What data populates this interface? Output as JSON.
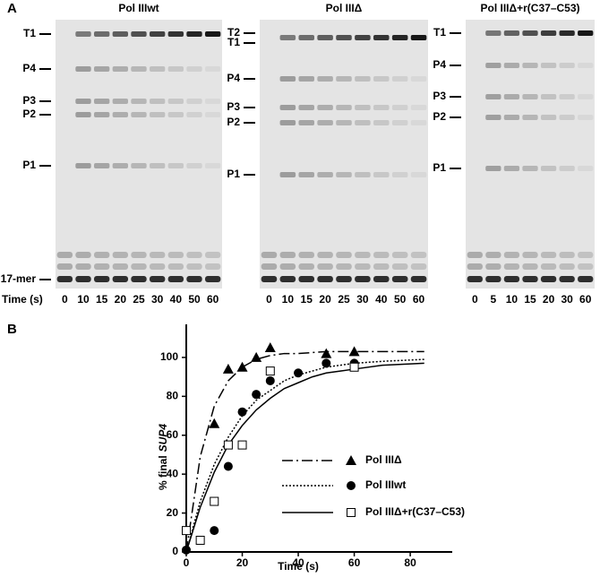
{
  "panel_labels": [
    "A",
    "B"
  ],
  "time_label": "Time (s)",
  "gels": [
    {
      "title": "Pol IIIwt",
      "bands": [
        "T1",
        "P4",
        "P3",
        "P2",
        "P1",
        "17-mer"
      ],
      "lanes": [
        "0",
        "10",
        "15",
        "20",
        "25",
        "30",
        "40",
        "50",
        "60"
      ]
    },
    {
      "title": "Pol IIIΔ",
      "bands": [
        "T2",
        "T1",
        "P4",
        "P3",
        "P2",
        "P1"
      ],
      "lanes": [
        "0",
        "10",
        "15",
        "20",
        "25",
        "30",
        "40",
        "50",
        "60"
      ]
    },
    {
      "title": "Pol IIIΔ+r(C37–C53)",
      "bands": [
        "T1",
        "P4",
        "P3",
        "P2",
        "P1"
      ],
      "lanes": [
        "0",
        "5",
        "10",
        "15",
        "20",
        "30",
        "60"
      ]
    }
  ],
  "chart_data": {
    "type": "scatter",
    "x_label": "Time (s)",
    "y_label": {
      "text": "% final",
      "italic": "SUP4"
    },
    "xlim": [
      0,
      95
    ],
    "ylim": [
      0,
      117
    ],
    "xticks": [
      0,
      20,
      40,
      60,
      80
    ],
    "yticks": [
      0,
      20,
      40,
      60,
      80,
      100
    ],
    "series": [
      {
        "name": "Pol IIIΔ",
        "marker": "triangle",
        "dash": "12,4,2,4",
        "color": "#000000",
        "x": [
          10,
          15,
          20,
          25,
          30,
          50,
          60
        ],
        "values": [
          66,
          94,
          95,
          100,
          105,
          102,
          103
        ],
        "fit_x": [
          0,
          5,
          10,
          15,
          20,
          25,
          30,
          35,
          40,
          50,
          60,
          70,
          85
        ],
        "fit_values": [
          0,
          49,
          75,
          88,
          95,
          99,
          101,
          102,
          102,
          103,
          103,
          103,
          103
        ]
      },
      {
        "name": "Pol IIIwt",
        "marker": "circle",
        "dash": "2,2",
        "color": "#000000",
        "x": [
          0,
          10,
          15,
          20,
          25,
          30,
          40,
          50,
          60
        ],
        "values": [
          1,
          11,
          44,
          72,
          81,
          88,
          92,
          97,
          97
        ],
        "fit_x": [
          0,
          5,
          10,
          15,
          20,
          25,
          30,
          35,
          40,
          45,
          50,
          55,
          60,
          70,
          85
        ],
        "fit_values": [
          0,
          26,
          45,
          59,
          70,
          78,
          83,
          88,
          91,
          93,
          95,
          96,
          97,
          98,
          99
        ]
      },
      {
        "name": "Pol IIIΔ+r(C37–C53)",
        "marker": "square",
        "dash": "",
        "color": "#000000",
        "x": [
          0,
          5,
          10,
          15,
          20,
          30,
          60
        ],
        "values": [
          11,
          6,
          26,
          55,
          55,
          93,
          95
        ],
        "fit_x": [
          0,
          5,
          10,
          15,
          20,
          25,
          30,
          35,
          40,
          45,
          50,
          55,
          60,
          70,
          85
        ],
        "fit_values": [
          0,
          23,
          41,
          55,
          65,
          73,
          79,
          84,
          87,
          90,
          92,
          93,
          94,
          96,
          97
        ]
      }
    ]
  }
}
